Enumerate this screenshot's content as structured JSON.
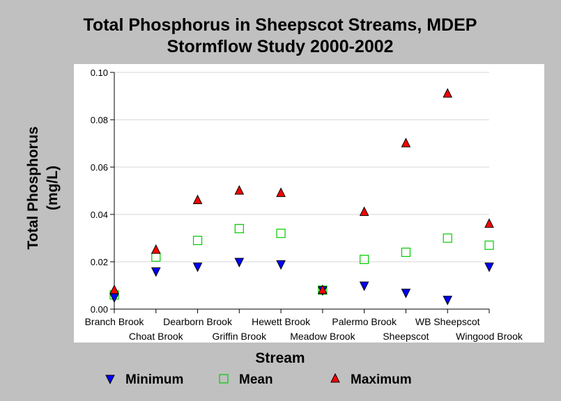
{
  "chart_data": {
    "type": "scatter",
    "title_line1": "Total Phosphorus in Sheepscot Streams, MDEP",
    "title_line2": "Stormflow Study 2000-2002",
    "xlabel": "Stream",
    "ylabel_line1": "Total Phosphorus",
    "ylabel_line2": "(mg/L)",
    "ylim": [
      0,
      0.1
    ],
    "yticks": [
      "0.00",
      "0.02",
      "0.04",
      "0.06",
      "0.08",
      "0.10"
    ],
    "grid": true,
    "legend_position": "bottom",
    "categories": [
      "Branch Brook",
      "Choat Brook",
      "Dearborn Brook",
      "Griffin Brook",
      "Hewett Brook",
      "Meadow Brook",
      "Palermo Brook",
      "Sheepscot",
      "WB Sheepscot",
      "Wingood Brook"
    ],
    "series": [
      {
        "name": "Minimum",
        "marker": "triangle-down",
        "color": "#0000ff",
        "values": [
          0.005,
          0.016,
          0.018,
          0.02,
          0.019,
          0.008,
          0.01,
          0.007,
          0.004,
          0.018
        ]
      },
      {
        "name": "Mean",
        "marker": "square-open",
        "color": "#00cc00",
        "values": [
          0.006,
          0.022,
          0.029,
          0.034,
          0.032,
          0.008,
          0.021,
          0.024,
          0.03,
          0.027
        ]
      },
      {
        "name": "Maximum",
        "marker": "triangle-up",
        "color": "#ff0000",
        "values": [
          0.008,
          0.025,
          0.046,
          0.05,
          0.049,
          0.008,
          0.041,
          0.07,
          0.091,
          0.036
        ]
      }
    ]
  }
}
